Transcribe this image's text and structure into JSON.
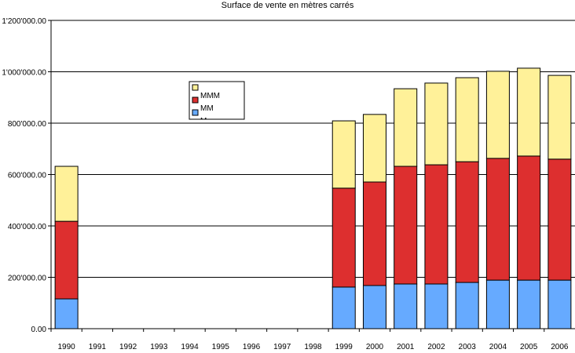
{
  "chart_data": {
    "type": "bar",
    "stacked": true,
    "title": "Surface de vente en mètres carrés",
    "categories": [
      "1990",
      "1991",
      "1992",
      "1993",
      "1994",
      "1995",
      "1996",
      "1997",
      "1998",
      "1999",
      "2000",
      "2001",
      "2002",
      "2003",
      "2004",
      "2005",
      "2006"
    ],
    "series": [
      {
        "name": "M",
        "color": "#66aaff",
        "values": [
          116000,
          null,
          null,
          null,
          null,
          null,
          null,
          null,
          null,
          162000,
          168000,
          174000,
          174000,
          180000,
          189000,
          189000,
          189000
        ]
      },
      {
        "name": "MM",
        "color": "#dd2f2f",
        "values": [
          302000,
          null,
          null,
          null,
          null,
          null,
          null,
          null,
          null,
          385000,
          403000,
          458000,
          464000,
          470000,
          474000,
          483000,
          471000
        ]
      },
      {
        "name": "MMM",
        "color": "#fff199",
        "values": [
          214000,
          null,
          null,
          null,
          null,
          null,
          null,
          null,
          null,
          262000,
          263000,
          302000,
          318000,
          327000,
          339000,
          342000,
          326000
        ]
      }
    ],
    "ylim": [
      0,
      1200000
    ],
    "yticks": [
      "0.00",
      "200'000.00",
      "400'000.00",
      "600'000.00",
      "800'000.00",
      "1'000'000.00",
      "1'200'000.00"
    ],
    "grid": true,
    "legend": {
      "position": "upper-left-center",
      "labels": [
        "MMM",
        "MM",
        "M"
      ]
    }
  }
}
